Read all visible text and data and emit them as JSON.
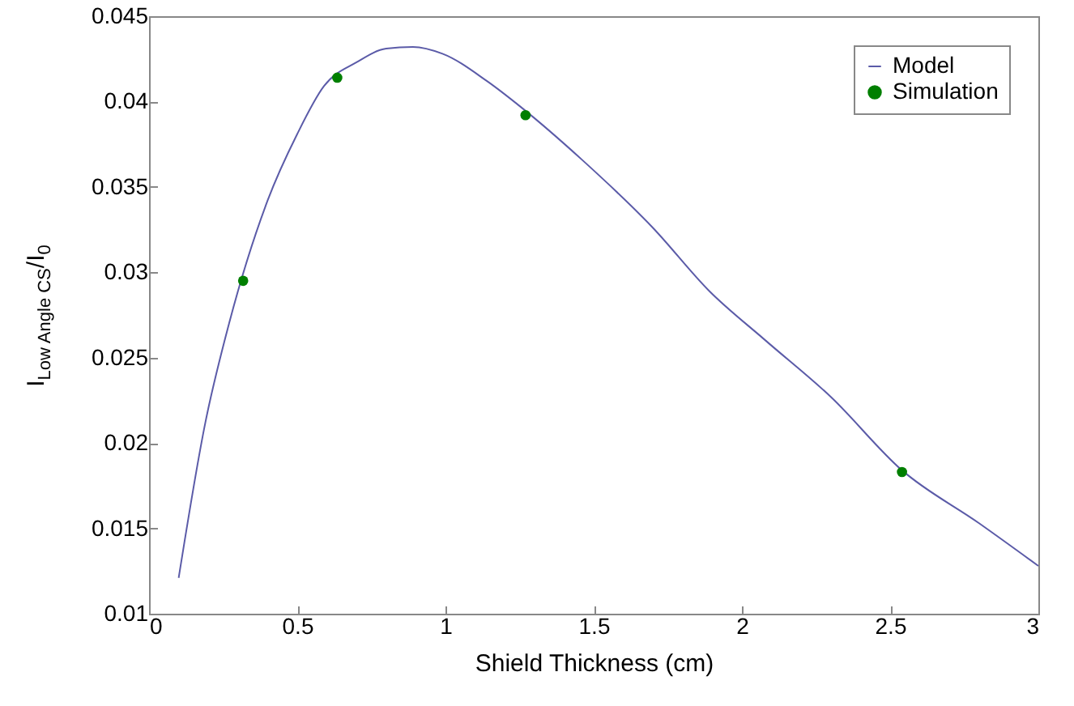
{
  "chart_data": {
    "type": "line",
    "xlabel": "Shield Thickness (cm)",
    "ylabel": "I$_{Low Angle CS}$/I$_{0}$",
    "xlim": [
      0,
      3
    ],
    "xticks": [
      0,
      0.5,
      1,
      1.5,
      2,
      2.5,
      3
    ],
    "ylim": [
      0.01,
      0.045
    ],
    "yticks": [
      0.01,
      0.015,
      0.02,
      0.025,
      0.03,
      0.035,
      0.04,
      0.045
    ],
    "grid": false,
    "legend": "top right",
    "series": [
      {
        "name": "Model",
        "color": "#5b5ba8",
        "marker": "none",
        "x": [
          0.1,
          0.19,
          0.27,
          0.4,
          0.5,
          0.59,
          0.7,
          0.8,
          0.89,
          0.99,
          1.14,
          1.26,
          1.46,
          1.7,
          1.89,
          2.08,
          2.3,
          2.54,
          2.8,
          3.0
        ],
        "values": [
          0.0121,
          0.0212,
          0.027,
          0.0342,
          0.0381,
          0.0409,
          0.0423,
          0.0431,
          0.0432,
          0.0428,
          0.0412,
          0.0396,
          0.0366,
          0.0326,
          0.0289,
          0.026,
          0.0227,
          0.0184,
          0.0153,
          0.0128
        ]
      },
      {
        "name": "Simulation",
        "type": "scatter",
        "color": "#007f00",
        "marker": "circle",
        "x": [
          0.3175,
          0.635,
          1.27,
          2.54
        ],
        "values": [
          0.0295,
          0.0414,
          0.0392,
          0.0183
        ]
      }
    ]
  }
}
